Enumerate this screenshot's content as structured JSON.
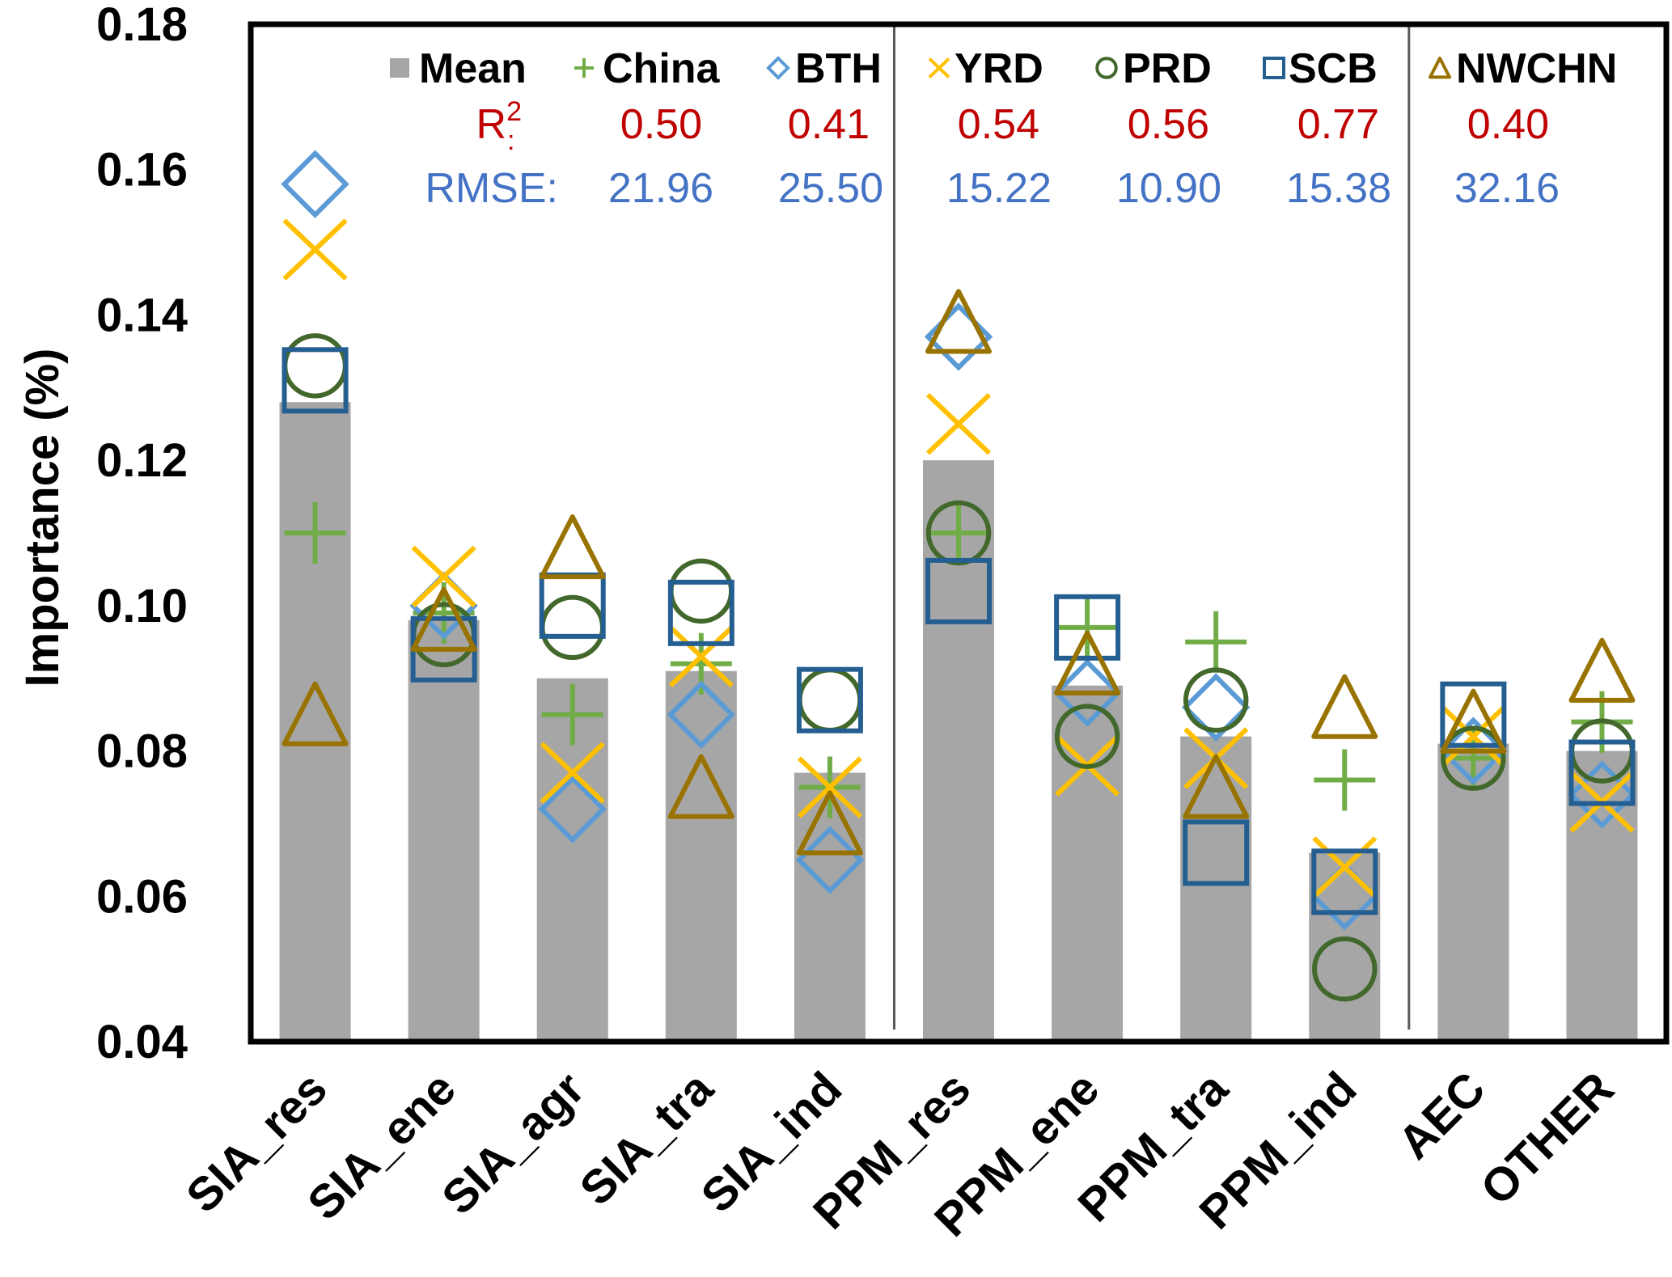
{
  "chart_data": {
    "type": "bar",
    "title": "",
    "xlabel": "",
    "ylabel": "Importance (%)",
    "ylim": [
      0.04,
      0.18
    ],
    "yticks": [
      "0.04",
      "0.06",
      "0.08",
      "0.10",
      "0.12",
      "0.14",
      "0.16",
      "0.18"
    ],
    "grid": false,
    "legend_position": "top",
    "categories": [
      "SIA_res",
      "SIA_ene",
      "SIA_agr",
      "SIA_tra",
      "SIA_ind",
      "PPM_res",
      "PPM_ene",
      "PPM_tra",
      "PPM_ind",
      "AEC",
      "OTHER"
    ],
    "group_separators_after": [
      "SIA_ind",
      "PPM_ind"
    ],
    "bar_series": {
      "name": "Mean",
      "color": "#a6a6a6",
      "values": [
        0.128,
        0.098,
        0.09,
        0.091,
        0.077,
        0.12,
        0.089,
        0.082,
        0.066,
        0.081,
        0.08
      ]
    },
    "series": [
      {
        "name": "China",
        "marker": "plus",
        "color": "#70ad47",
        "values": [
          0.11,
          0.099,
          0.085,
          0.092,
          0.075,
          0.11,
          0.097,
          0.095,
          0.076,
          0.079,
          0.084
        ]
      },
      {
        "name": "BTH",
        "marker": "diamond",
        "color": "#5b9bd5",
        "values": [
          0.158,
          0.1,
          0.072,
          0.085,
          0.065,
          0.137,
          0.088,
          0.086,
          0.06,
          0.08,
          0.074
        ]
      },
      {
        "name": "YRD",
        "marker": "x",
        "color": "#ffc000",
        "values": [
          0.149,
          0.104,
          0.077,
          0.093,
          0.075,
          0.125,
          0.078,
          0.079,
          0.064,
          0.082,
          0.073
        ]
      },
      {
        "name": "PRD",
        "marker": "circle",
        "color": "#43682b",
        "values": [
          0.133,
          0.096,
          0.097,
          0.102,
          0.087,
          0.11,
          0.082,
          0.087,
          0.05,
          0.079,
          0.08
        ]
      },
      {
        "name": "SCB",
        "marker": "square",
        "color": "#255e91",
        "values": [
          0.131,
          0.094,
          0.1,
          0.099,
          0.087,
          0.102,
          0.097,
          0.066,
          0.062,
          0.085,
          0.077
        ]
      },
      {
        "name": "NWCHN",
        "marker": "triangle",
        "color": "#997300",
        "values": [
          0.085,
          0.098,
          0.108,
          0.075,
          0.07,
          0.139,
          0.092,
          0.075,
          0.086,
          0.084,
          0.091
        ]
      }
    ],
    "stats": {
      "r2_label": "R",
      "r2_sup": "2",
      "r2_suffix": ":",
      "rmse_label": "RMSE:",
      "r2_color": "#c00000",
      "rmse_color": "#4472c4",
      "rows": [
        {
          "region": "China",
          "r2": "0.50",
          "rmse": "21.96"
        },
        {
          "region": "BTH",
          "r2": "0.41",
          "rmse": "25.50"
        },
        {
          "region": "YRD",
          "r2": "0.54",
          "rmse": "15.22"
        },
        {
          "region": "PRD",
          "r2": "0.56",
          "rmse": "10.90"
        },
        {
          "region": "SCB",
          "r2": "0.77",
          "rmse": "15.38"
        },
        {
          "region": "NWCHN",
          "r2": "0.40",
          "rmse": "32.16"
        }
      ]
    }
  }
}
